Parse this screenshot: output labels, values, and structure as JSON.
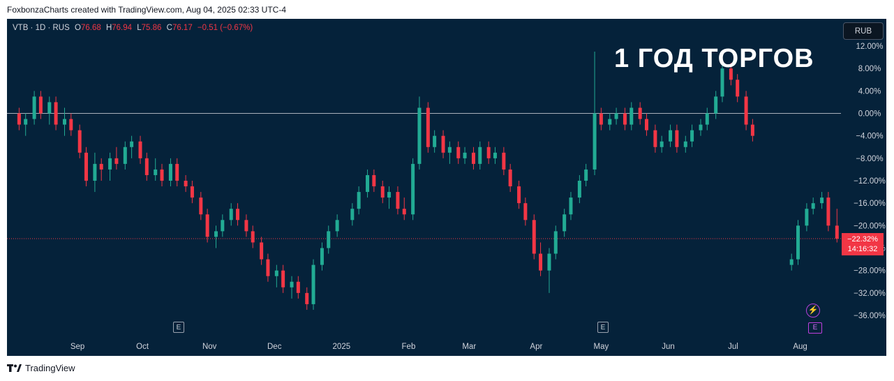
{
  "header": {
    "caption": "FoxbonzaCharts created with TradingView.com, Aug 04, 2025 02:33 UTC-4"
  },
  "legend": {
    "symbol": "VTB · 1D · RUS",
    "o_label": "O",
    "o_value": "76.68",
    "h_label": "H",
    "h_value": "76.94",
    "l_label": "L",
    "l_value": "75.86",
    "c_label": "C",
    "c_value": "76.17",
    "change": "−0.51 (−0.67%)"
  },
  "overlay_title": "1 ГОД ТОРГОВ",
  "currency_button": "RUB",
  "price_badge": {
    "percent": "−22.32%",
    "countdown": "14:16:32"
  },
  "earnings_markers": [
    "E",
    "E"
  ],
  "footer": {
    "brand": "TradingView"
  },
  "colors": {
    "background": "#05223a",
    "up": "#22ab94",
    "down": "#f23645",
    "zero_line": "#d1d4dc",
    "axis_text": "#d1d4dc"
  },
  "chart_data": {
    "type": "candlestick",
    "y_unit": "percent",
    "ylim": [
      -40,
      14
    ],
    "y_ticks": [
      "12.00%",
      "8.00%",
      "4.00%",
      "0.00%",
      "−4.00%",
      "−8.00%",
      "−12.00%",
      "−16.00%",
      "−20.00%",
      "−24.00%",
      "−28.00%",
      "−32.00%",
      "−36.00%"
    ],
    "y_tick_values": [
      12,
      8,
      4,
      0,
      -4,
      -8,
      -12,
      -16,
      -20,
      -24,
      -28,
      -32,
      -36
    ],
    "x_tick_labels": [
      "Sep",
      "Oct",
      "Nov",
      "Dec",
      "2025",
      "Feb",
      "Mar",
      "Apr",
      "May",
      "Jun",
      "Jul",
      "Aug"
    ],
    "x_tick_dates": [
      "2024-09-01",
      "2024-10-01",
      "2024-11-01",
      "2024-12-01",
      "2025-01-01",
      "2025-02-01",
      "2025-03-01",
      "2025-04-01",
      "2025-05-01",
      "2025-06-01",
      "2025-07-01",
      "2025-08-01"
    ],
    "baseline": 0,
    "last_value": -22.32,
    "series": [
      {
        "ohlc": [
          [
            "2024-08-05",
            0,
            1,
            -3,
            -2
          ],
          [
            "2024-08-08",
            -2,
            0,
            -4,
            -1
          ],
          [
            "2024-08-12",
            -1,
            4,
            -2,
            3
          ],
          [
            "2024-08-15",
            3,
            4,
            -1,
            0
          ],
          [
            "2024-08-19",
            0,
            3,
            -2,
            2
          ],
          [
            "2024-08-22",
            2,
            3,
            -3,
            -2
          ],
          [
            "2024-08-26",
            -2,
            1,
            -4,
            -1
          ],
          [
            "2024-08-29",
            -1,
            0,
            -4,
            -3
          ],
          [
            "2024-09-02",
            -3,
            -2,
            -8,
            -7
          ],
          [
            "2024-09-05",
            -7,
            -6,
            -13,
            -12
          ],
          [
            "2024-09-09",
            -12,
            -7,
            -14,
            -9
          ],
          [
            "2024-09-12",
            -9,
            -8,
            -12,
            -10
          ],
          [
            "2024-09-16",
            -10,
            -7,
            -12,
            -8
          ],
          [
            "2024-09-19",
            -8,
            -6,
            -10,
            -9
          ],
          [
            "2024-09-23",
            -9,
            -5,
            -10,
            -6
          ],
          [
            "2024-09-26",
            -6,
            -4,
            -8,
            -5
          ],
          [
            "2024-09-30",
            -5,
            -4,
            -9,
            -8
          ],
          [
            "2024-10-03",
            -8,
            -7,
            -12,
            -11
          ],
          [
            "2024-10-07",
            -11,
            -8,
            -12,
            -10
          ],
          [
            "2024-10-10",
            -10,
            -9,
            -13,
            -12
          ],
          [
            "2024-10-14",
            -12,
            -8,
            -13,
            -9
          ],
          [
            "2024-10-17",
            -9,
            -8,
            -13,
            -12
          ],
          [
            "2024-10-21",
            -12,
            -11,
            -14,
            -13
          ],
          [
            "2024-10-24",
            -13,
            -12,
            -16,
            -15
          ],
          [
            "2024-10-28",
            -15,
            -14,
            -19,
            -18
          ],
          [
            "2024-10-31",
            -18,
            -17,
            -23,
            -22
          ],
          [
            "2024-11-04",
            -22,
            -20,
            -24,
            -21
          ],
          [
            "2024-11-07",
            -21,
            -18,
            -22,
            -19
          ],
          [
            "2024-11-11",
            -19,
            -16,
            -20,
            -17
          ],
          [
            "2024-11-14",
            -17,
            -16,
            -20,
            -19
          ],
          [
            "2024-11-18",
            -19,
            -18,
            -22,
            -21
          ],
          [
            "2024-11-21",
            -21,
            -20,
            -24,
            -23
          ],
          [
            "2024-11-25",
            -23,
            -22,
            -27,
            -26
          ],
          [
            "2024-11-28",
            -26,
            -25,
            -30,
            -29
          ],
          [
            "2024-12-02",
            -29,
            -27,
            -31,
            -28
          ],
          [
            "2024-12-05",
            -28,
            -27,
            -32,
            -31
          ],
          [
            "2024-12-09",
            -31,
            -29,
            -33,
            -30
          ],
          [
            "2024-12-12",
            -30,
            -29,
            -33,
            -32
          ],
          [
            "2024-12-16",
            -32,
            -31,
            -35,
            -34
          ],
          [
            "2024-12-19",
            -34,
            -26,
            -35,
            -27
          ],
          [
            "2024-12-23",
            -27,
            -23,
            -28,
            -24
          ],
          [
            "2024-12-26",
            -24,
            -20,
            -25,
            -21
          ],
          [
            "2024-12-30",
            -21,
            -18,
            -22,
            -19
          ],
          [
            "2025-01-06",
            -19,
            -16,
            -20,
            -17
          ],
          [
            "2025-01-09",
            -17,
            -13,
            -18,
            -14
          ],
          [
            "2025-01-13",
            -14,
            -10,
            -15,
            -11
          ],
          [
            "2025-01-16",
            -11,
            -10,
            -14,
            -13
          ],
          [
            "2025-01-20",
            -13,
            -12,
            -16,
            -15
          ],
          [
            "2025-01-23",
            -15,
            -13,
            -17,
            -14
          ],
          [
            "2025-01-27",
            -14,
            -13,
            -18,
            -17
          ],
          [
            "2025-01-30",
            -17,
            -15,
            -19,
            -18
          ],
          [
            "2025-02-03",
            -18,
            -8,
            -19,
            -9
          ],
          [
            "2025-02-06",
            -9,
            3,
            -10,
            1
          ],
          [
            "2025-02-10",
            1,
            2,
            -7,
            -6
          ],
          [
            "2025-02-13",
            -6,
            -3,
            -7,
            -4
          ],
          [
            "2025-02-17",
            -4,
            -3,
            -8,
            -7
          ],
          [
            "2025-02-20",
            -7,
            -5,
            -9,
            -6
          ],
          [
            "2025-02-24",
            -6,
            -5,
            -9,
            -8
          ],
          [
            "2025-02-27",
            -8,
            -6,
            -9,
            -7
          ],
          [
            "2025-03-03",
            -7,
            -6,
            -10,
            -9
          ],
          [
            "2025-03-06",
            -9,
            -5,
            -10,
            -6
          ],
          [
            "2025-03-10",
            -6,
            -5,
            -9,
            -8
          ],
          [
            "2025-03-13",
            -8,
            -6,
            -9,
            -7
          ],
          [
            "2025-03-17",
            -7,
            -6,
            -11,
            -10
          ],
          [
            "2025-03-20",
            -10,
            -9,
            -14,
            -13
          ],
          [
            "2025-03-24",
            -13,
            -12,
            -17,
            -16
          ],
          [
            "2025-03-27",
            -16,
            -15,
            -20,
            -19
          ],
          [
            "2025-03-31",
            -19,
            -18,
            -26,
            -25
          ],
          [
            "2025-04-03",
            -25,
            -23,
            -29,
            -28
          ],
          [
            "2025-04-07",
            -28,
            -24,
            -32,
            -25
          ],
          [
            "2025-04-10",
            -25,
            -20,
            -26,
            -21
          ],
          [
            "2025-04-14",
            -21,
            -17,
            -22,
            -18
          ],
          [
            "2025-04-17",
            -18,
            -14,
            -19,
            -15
          ],
          [
            "2025-04-21",
            -15,
            -11,
            -16,
            -12
          ],
          [
            "2025-04-24",
            -12,
            -9,
            -13,
            -10
          ],
          [
            "2025-04-28",
            -10,
            11,
            -11,
            0
          ],
          [
            "2025-05-01",
            0,
            1,
            -3,
            -2
          ],
          [
            "2025-05-05",
            -2,
            0,
            -3,
            -1
          ],
          [
            "2025-05-08",
            -1,
            1,
            -2,
            0
          ],
          [
            "2025-05-12",
            0,
            1,
            -3,
            -2
          ],
          [
            "2025-05-15",
            -2,
            2,
            -3,
            1
          ],
          [
            "2025-05-19",
            1,
            2,
            -2,
            -1
          ],
          [
            "2025-05-22",
            -1,
            0,
            -4,
            -3
          ],
          [
            "2025-05-26",
            -3,
            -2,
            -7,
            -6
          ],
          [
            "2025-05-29",
            -6,
            -4,
            -7,
            -5
          ],
          [
            "2025-06-02",
            -5,
            -2,
            -6,
            -3
          ],
          [
            "2025-06-05",
            -3,
            -2,
            -7,
            -6
          ],
          [
            "2025-06-09",
            -6,
            -4,
            -7,
            -5
          ],
          [
            "2025-06-12",
            -5,
            -2,
            -6,
            -3
          ],
          [
            "2025-06-16",
            -3,
            -1,
            -4,
            -2
          ],
          [
            "2025-06-19",
            -2,
            1,
            -3,
            0
          ],
          [
            "2025-06-23",
            0,
            4,
            -1,
            3
          ],
          [
            "2025-06-26",
            3,
            9,
            2,
            8
          ],
          [
            "2025-06-30",
            8,
            9,
            5,
            6
          ],
          [
            "2025-07-03",
            6,
            7,
            2,
            3
          ],
          [
            "2025-07-07",
            3,
            4,
            -3,
            -2
          ],
          [
            "2025-07-10",
            -2,
            -1,
            -5,
            -4
          ],
          [
            "2025-07-28",
            -27,
            -25,
            -28,
            -26
          ],
          [
            "2025-07-31",
            -26,
            -19,
            -27,
            -20
          ],
          [
            "2025-08-04",
            -20,
            -16,
            -21,
            -17
          ],
          [
            "2025-08-07",
            -17,
            -15,
            -18,
            -16
          ],
          [
            "2025-08-11",
            -16,
            -14,
            -17,
            -15
          ],
          [
            "2025-08-14",
            -15,
            -14,
            -21,
            -20
          ],
          [
            "2025-08-18",
            -20,
            -17,
            -23,
            -22.32
          ]
        ]
      }
    ]
  }
}
